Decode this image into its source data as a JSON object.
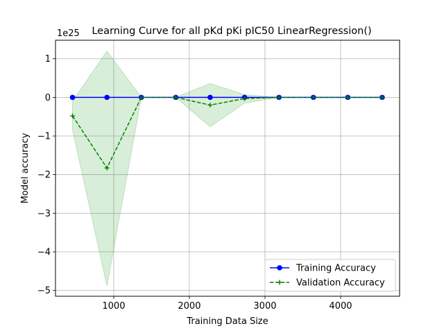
{
  "chart_data": {
    "type": "line",
    "title": "Learning Curve for all pKd pKi pIC50 LinearRegression()",
    "xlabel": "Training Data Size",
    "ylabel": "Model accuracy",
    "offset_label": "1e25",
    "xlim": [
      230,
      4780
    ],
    "ylim": [
      -5.15,
      1.48
    ],
    "xticks": [
      1000,
      2000,
      3000,
      4000
    ],
    "xtick_labels": [
      "1000",
      "2000",
      "3000",
      "4000"
    ],
    "yticks": [
      1,
      0,
      -1,
      -2,
      -3,
      -4,
      -5
    ],
    "ytick_labels": [
      "1",
      "0",
      "−1",
      "−2",
      "−3",
      "−4",
      "−5"
    ],
    "grid": true,
    "legend_position": "lower-right",
    "x": [
      455,
      910,
      1365,
      1820,
      2275,
      2730,
      3185,
      3640,
      4095,
      4550
    ],
    "series": [
      {
        "name": "Training Accuracy",
        "color": "#0000ff",
        "linestyle": "solid",
        "marker": "circle",
        "values": [
          0,
          0,
          0,
          0,
          0,
          0,
          0,
          0,
          0,
          0
        ]
      },
      {
        "name": "Validation Accuracy",
        "color": "#008000",
        "linestyle": "dashed",
        "marker": "plus",
        "values": [
          -0.48,
          -1.83,
          0,
          0,
          -0.2,
          -0.03,
          0,
          0,
          0,
          0
        ],
        "band_lower": [
          -0.85,
          -4.88,
          0,
          0,
          -0.76,
          -0.15,
          0,
          0,
          0,
          0
        ],
        "band_upper": [
          -0.1,
          1.2,
          0,
          0,
          0.36,
          0.07,
          0,
          0,
          0,
          0
        ],
        "band_color": "#2ca02c"
      }
    ]
  }
}
